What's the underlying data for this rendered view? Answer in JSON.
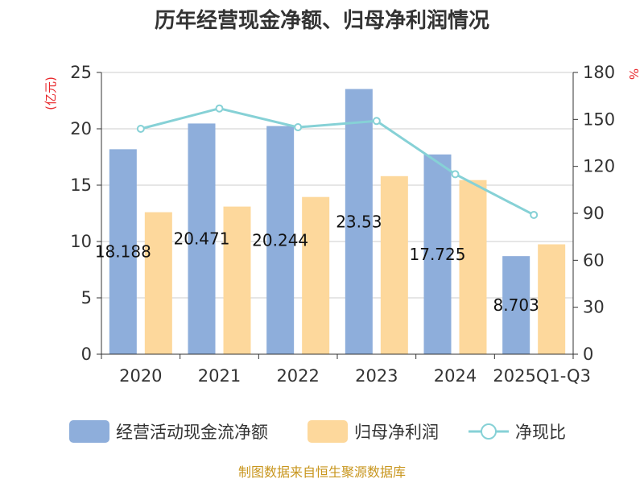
{
  "chart_data": {
    "type": "bar",
    "title": "历年经营现金净额、归母净利润情况",
    "categories": [
      "2020",
      "2021",
      "2022",
      "2023",
      "2024",
      "2025Q1-Q3"
    ],
    "series": [
      {
        "name": "经营活动现金流净额",
        "type": "bar",
        "axis": "left",
        "color": "#8eaedb",
        "values": [
          18.188,
          20.471,
          20.244,
          23.53,
          17.725,
          8.703
        ],
        "labels": [
          "18.188",
          "20.471",
          "20.244",
          "23.53",
          "17.725",
          "8.703"
        ]
      },
      {
        "name": "归母净利润",
        "type": "bar",
        "axis": "left",
        "color": "#fdd89c",
        "values": [
          12.6,
          13.1,
          13.95,
          15.8,
          15.45,
          9.75
        ]
      },
      {
        "name": "净现比",
        "type": "line",
        "axis": "right",
        "color": "#86d1d6",
        "values": [
          144,
          157,
          145,
          149,
          115,
          89
        ]
      }
    ],
    "y_left": {
      "label": "(亿元)",
      "ylim": [
        0,
        25
      ],
      "ticks": [
        0,
        5,
        10,
        15,
        20,
        25
      ]
    },
    "y_right": {
      "label": "%",
      "ylim": [
        0,
        180
      ],
      "ticks": [
        0,
        30,
        60,
        90,
        120,
        150,
        180
      ]
    },
    "grid": true,
    "legend_position": "bottom"
  },
  "source": "制图数据来自恒生聚源数据库"
}
